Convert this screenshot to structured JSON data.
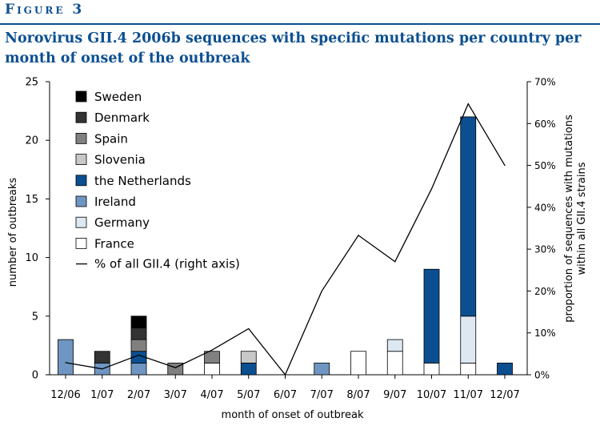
{
  "figure": {
    "label": "Figure 3",
    "title": "Norovirus GII.4 2006b sequences with specific mutations per country per month of onset of the outbreak"
  },
  "colors": {
    "Sweden": "#000000",
    "Denmark": "#333333",
    "Spain": "#808080",
    "Slovenia": "#c8c8c8",
    "the Netherlands": "#0b4f91",
    "Ireland": "#6f96c2",
    "Germany": "#dde8f2",
    "France": "#ffffff",
    "line": "#000000",
    "accent": "#0b4f91"
  },
  "chart_data": {
    "type": "bar",
    "stacked": true,
    "xlabel": "month of onset of outbreak",
    "ylabel": "number of outbreaks",
    "y2label": "proportion of sequences with mutations within all GII.4 strains",
    "ylim": [
      0,
      25
    ],
    "yticks": [
      "0",
      "5",
      "10",
      "15",
      "20",
      "25"
    ],
    "y2lim": [
      0,
      70
    ],
    "y2ticks": [
      "0%",
      "10%",
      "20%",
      "30%",
      "40%",
      "50%",
      "60%",
      "70%"
    ],
    "legend_position": "top-left",
    "categories": [
      "12/06",
      "1/07",
      "2/07",
      "3/07",
      "4/07",
      "5/07",
      "6/07",
      "7/07",
      "8/07",
      "9/07",
      "10/07",
      "11/07",
      "12/07"
    ],
    "series": [
      {
        "name": "France",
        "values": [
          0,
          0,
          0,
          0,
          1,
          0,
          0,
          0,
          2,
          2,
          1,
          1,
          0
        ]
      },
      {
        "name": "Germany",
        "values": [
          0,
          0,
          0,
          0,
          0,
          0,
          0,
          0,
          0,
          1,
          0,
          4,
          0
        ]
      },
      {
        "name": "Ireland",
        "values": [
          3,
          1,
          1,
          0,
          0,
          0,
          0,
          1,
          0,
          0,
          0,
          0,
          0
        ]
      },
      {
        "name": "the Netherlands",
        "values": [
          0,
          0,
          1,
          0,
          0,
          1,
          0,
          0,
          0,
          0,
          8,
          17,
          1
        ]
      },
      {
        "name": "Slovenia",
        "values": [
          0,
          0,
          0,
          0,
          0,
          1,
          0,
          0,
          0,
          0,
          0,
          0,
          0
        ]
      },
      {
        "name": "Spain",
        "values": [
          0,
          0,
          1,
          1,
          1,
          0,
          0,
          0,
          0,
          0,
          0,
          0,
          0
        ]
      },
      {
        "name": "Denmark",
        "values": [
          0,
          1,
          1,
          0,
          0,
          0,
          0,
          0,
          0,
          0,
          0,
          0,
          0
        ]
      },
      {
        "name": "Sweden",
        "values": [
          0,
          0,
          1,
          0,
          0,
          0,
          0,
          0,
          0,
          0,
          0,
          0,
          0
        ]
      }
    ],
    "legend_order": [
      "Sweden",
      "Denmark",
      "Spain",
      "Slovenia",
      "the Netherlands",
      "Ireland",
      "Germany",
      "France"
    ],
    "line": {
      "name": "% of all GII.4 (right axis)",
      "axis": "right",
      "values": [
        2.9,
        1.4,
        4.7,
        1.7,
        5.9,
        11,
        0,
        20,
        33.3,
        27,
        44.4,
        64.7,
        50
      ]
    }
  }
}
